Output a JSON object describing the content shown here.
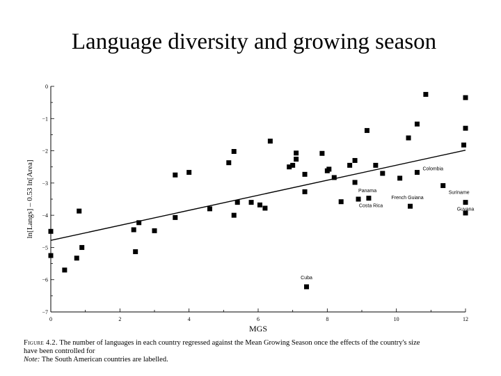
{
  "slide": {
    "title": "Language diversity and growing season"
  },
  "caption": {
    "figure_lead": "Figure 4.2.",
    "line1": " The number of languages in each country regressed against the Mean Growing Season once the effects of the country's size",
    "line2": "have been controlled for",
    "note_lead": "Note:",
    "note_text": " The South American countries are labelled."
  },
  "chart_data": {
    "type": "scatter",
    "title": "",
    "xlabel": "MGS",
    "ylabel": "ln[Langs] – 0.53 ln[Area]",
    "xlim": [
      0,
      12
    ],
    "ylim": [
      -7,
      0
    ],
    "xticks": [
      "0",
      "2",
      "4",
      "6",
      "8",
      "10",
      "12"
    ],
    "yticks": [
      "0",
      "−1",
      "−2",
      "−3",
      "−4",
      "−5",
      "−6",
      "−7"
    ],
    "grid": false,
    "legend": "none",
    "marker": "square",
    "points": [
      {
        "x": 0.0,
        "y": -4.5,
        "label": ""
      },
      {
        "x": 0.0,
        "y": -5.25,
        "label": ""
      },
      {
        "x": 0.4,
        "y": -5.7,
        "label": ""
      },
      {
        "x": 0.75,
        "y": -5.33,
        "label": ""
      },
      {
        "x": 0.82,
        "y": -3.87,
        "label": ""
      },
      {
        "x": 0.9,
        "y": -5.0,
        "label": ""
      },
      {
        "x": 2.4,
        "y": -4.45,
        "label": ""
      },
      {
        "x": 2.45,
        "y": -5.13,
        "label": ""
      },
      {
        "x": 2.55,
        "y": -4.23,
        "label": ""
      },
      {
        "x": 3.0,
        "y": -4.48,
        "label": ""
      },
      {
        "x": 3.6,
        "y": -2.75,
        "label": ""
      },
      {
        "x": 3.6,
        "y": -4.07,
        "label": ""
      },
      {
        "x": 4.0,
        "y": -2.67,
        "label": ""
      },
      {
        "x": 4.6,
        "y": -3.8,
        "label": ""
      },
      {
        "x": 5.15,
        "y": -2.37,
        "label": ""
      },
      {
        "x": 5.3,
        "y": -2.02,
        "label": ""
      },
      {
        "x": 5.3,
        "y": -4.0,
        "label": ""
      },
      {
        "x": 5.4,
        "y": -3.6,
        "label": ""
      },
      {
        "x": 5.8,
        "y": -3.6,
        "label": ""
      },
      {
        "x": 6.05,
        "y": -3.68,
        "label": ""
      },
      {
        "x": 6.2,
        "y": -3.78,
        "label": ""
      },
      {
        "x": 6.35,
        "y": -1.7,
        "label": ""
      },
      {
        "x": 6.9,
        "y": -2.5,
        "label": ""
      },
      {
        "x": 7.0,
        "y": -2.45,
        "label": ""
      },
      {
        "x": 7.1,
        "y": -2.07,
        "label": ""
      },
      {
        "x": 7.1,
        "y": -2.26,
        "label": ""
      },
      {
        "x": 7.35,
        "y": -2.73,
        "label": ""
      },
      {
        "x": 7.35,
        "y": -3.27,
        "label": ""
      },
      {
        "x": 7.85,
        "y": -2.08,
        "label": ""
      },
      {
        "x": 8.0,
        "y": -2.62,
        "label": ""
      },
      {
        "x": 8.05,
        "y": -2.57,
        "label": ""
      },
      {
        "x": 8.2,
        "y": -2.83,
        "label": ""
      },
      {
        "x": 8.4,
        "y": -3.58,
        "label": ""
      },
      {
        "x": 8.65,
        "y": -2.45,
        "label": ""
      },
      {
        "x": 8.8,
        "y": -2.3,
        "label": ""
      },
      {
        "x": 8.8,
        "y": -2.98,
        "label": ""
      },
      {
        "x": 8.9,
        "y": -3.5,
        "label": "Panama"
      },
      {
        "x": 9.15,
        "y": -1.37,
        "label": ""
      },
      {
        "x": 9.2,
        "y": -3.47,
        "label": "Costa Rica"
      },
      {
        "x": 9.4,
        "y": -2.45,
        "label": ""
      },
      {
        "x": 9.6,
        "y": -2.7,
        "label": ""
      },
      {
        "x": 10.1,
        "y": -2.85,
        "label": ""
      },
      {
        "x": 10.35,
        "y": -1.6,
        "label": ""
      },
      {
        "x": 10.4,
        "y": -3.72,
        "label": "French Guiana"
      },
      {
        "x": 10.6,
        "y": -1.17,
        "label": ""
      },
      {
        "x": 10.6,
        "y": -2.67,
        "label": "Colombia"
      },
      {
        "x": 10.85,
        "y": -0.25,
        "label": ""
      },
      {
        "x": 11.35,
        "y": -3.08,
        "label": "Suriname"
      },
      {
        "x": 11.95,
        "y": -1.82,
        "label": ""
      },
      {
        "x": 12.0,
        "y": -0.35,
        "label": ""
      },
      {
        "x": 12.0,
        "y": -1.3,
        "label": ""
      },
      {
        "x": 12.0,
        "y": -3.6,
        "label": "Guyana"
      },
      {
        "x": 12.0,
        "y": -3.93,
        "label": ""
      },
      {
        "x": 7.4,
        "y": -6.22,
        "label": "Cuba"
      }
    ],
    "regression_line": {
      "x": [
        0,
        12
      ],
      "y": [
        -4.78,
        -1.98
      ]
    }
  }
}
